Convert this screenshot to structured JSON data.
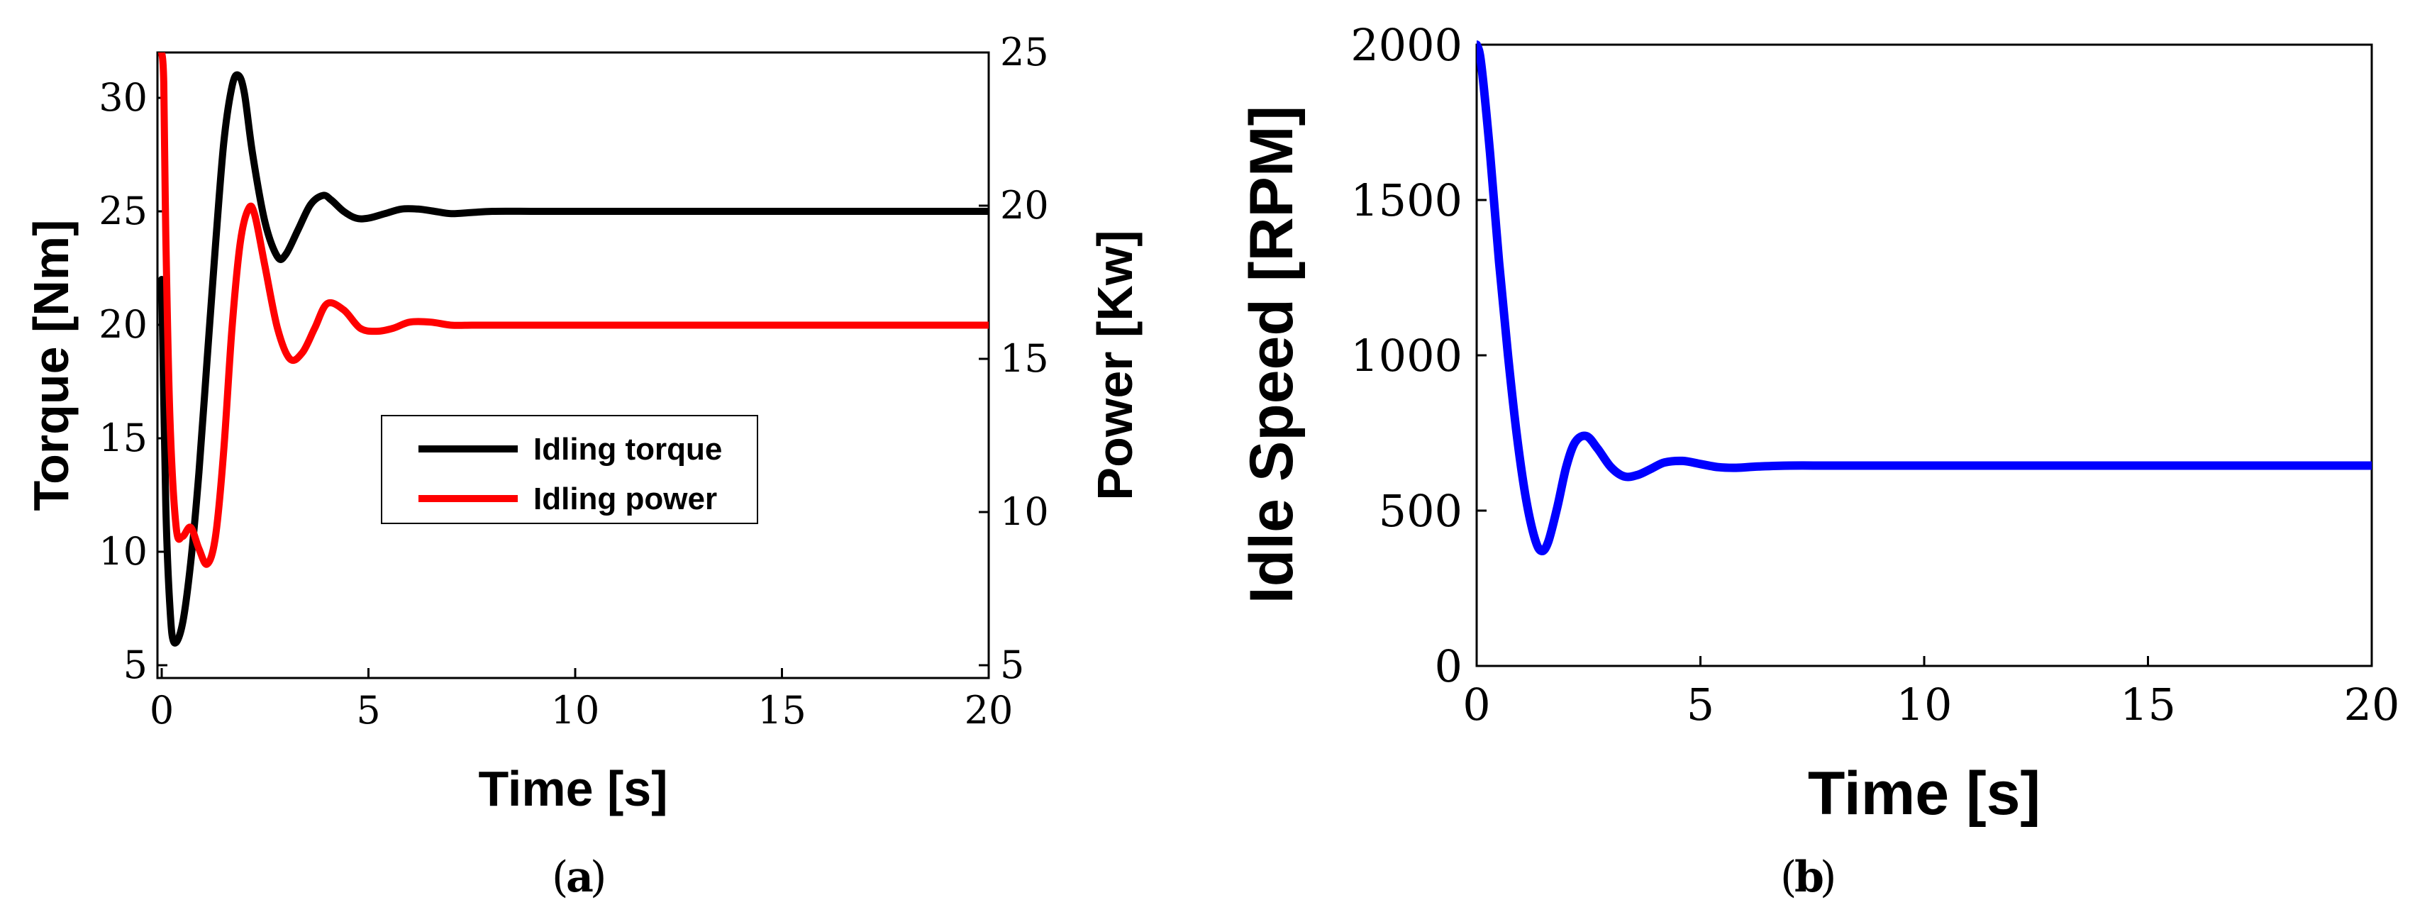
{
  "chart_data": [
    {
      "type": "line",
      "panel_caption": "a",
      "xlabel": "Time [s]",
      "ylabel_left": "Torque [Nm]",
      "ylabel_right": "Power [Kw]",
      "xlim": [
        0,
        20
      ],
      "ylim_left": [
        5,
        32
      ],
      "ylim_right": [
        5,
        25
      ],
      "x_ticks": [
        0,
        5,
        10,
        15,
        20
      ],
      "y_ticks_left": [
        5,
        10,
        15,
        20,
        25,
        30
      ],
      "y_ticks_right": [
        5,
        10,
        15,
        20,
        25
      ],
      "grid": false,
      "legend_position": "center",
      "series": [
        {
          "name": "Idling torque",
          "axis": "left",
          "color": "#000000",
          "x": [
            0,
            0.1,
            0.2,
            0.3,
            0.5,
            0.7,
            0.9,
            1.1,
            1.3,
            1.5,
            1.7,
            1.85,
            2.0,
            2.2,
            2.5,
            2.8,
            3.0,
            3.3,
            3.6,
            3.9,
            4.1,
            4.4,
            4.7,
            5.0,
            5.4,
            5.8,
            6.2,
            6.6,
            7.0,
            7.5,
            8.0,
            9.0,
            10,
            12,
            15,
            20
          ],
          "y": [
            22,
            12,
            7.5,
            6.0,
            6.8,
            9.5,
            13.5,
            18.5,
            23.5,
            28,
            30.5,
            31.0,
            30.2,
            27.5,
            24.5,
            23.0,
            23.1,
            24.2,
            25.3,
            25.7,
            25.5,
            25.0,
            24.7,
            24.7,
            24.9,
            25.1,
            25.1,
            25.0,
            24.9,
            24.95,
            25.0,
            25.0,
            25.0,
            25.0,
            25.0,
            25.0
          ]
        },
        {
          "name": "Idling power",
          "axis": "right",
          "color": "#ff0000",
          "x": [
            0,
            0.05,
            0.1,
            0.2,
            0.35,
            0.5,
            0.7,
            0.9,
            1.1,
            1.3,
            1.5,
            1.7,
            1.9,
            2.1,
            2.25,
            2.5,
            2.8,
            3.1,
            3.4,
            3.7,
            4.0,
            4.4,
            4.8,
            5.2,
            5.6,
            6.0,
            6.5,
            7.0,
            7.5,
            8.0,
            9.0,
            10,
            12,
            15,
            20
          ],
          "y": [
            25,
            24,
            19,
            13,
            9.5,
            9.2,
            9.5,
            8.8,
            8.3,
            9.2,
            12.0,
            16.0,
            18.8,
            19.9,
            19.7,
            18.0,
            16.0,
            15.0,
            15.2,
            16.0,
            16.8,
            16.6,
            16.0,
            15.9,
            16.0,
            16.2,
            16.2,
            16.1,
            16.1,
            16.1,
            16.1,
            16.1,
            16.1,
            16.1,
            16.1
          ]
        }
      ]
    },
    {
      "type": "line",
      "panel_caption": "b",
      "xlabel": "Time [s]",
      "ylabel": "Idle Speed [RPM]",
      "xlim": [
        0,
        20
      ],
      "ylim": [
        0,
        2000
      ],
      "x_ticks": [
        0,
        5,
        10,
        15,
        20
      ],
      "y_ticks": [
        0,
        500,
        1000,
        1500,
        2000
      ],
      "grid": false,
      "series": [
        {
          "color": "#0000ff",
          "x": [
            0,
            0.1,
            0.3,
            0.5,
            0.7,
            0.9,
            1.1,
            1.3,
            1.45,
            1.6,
            1.8,
            2.0,
            2.2,
            2.45,
            2.7,
            3.0,
            3.3,
            3.6,
            3.9,
            4.2,
            4.6,
            5.0,
            5.4,
            5.8,
            6.3,
            7.0,
            8.0,
            10,
            12,
            15,
            20
          ],
          "y": [
            2000,
            1940,
            1650,
            1300,
            1000,
            740,
            540,
            410,
            370,
            400,
            510,
            640,
            720,
            740,
            700,
            640,
            610,
            615,
            635,
            655,
            660,
            650,
            640,
            638,
            642,
            645,
            645,
            645,
            645,
            645,
            645
          ]
        }
      ]
    }
  ]
}
